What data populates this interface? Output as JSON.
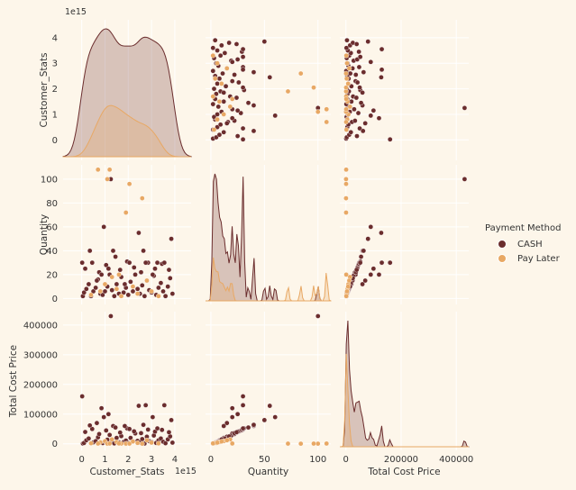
{
  "chart_data": {
    "type": "scatter",
    "kind": "pairplot",
    "variables": [
      "Customer_Stats",
      "Quantity",
      "Total Cost Price"
    ],
    "axis_labels": {
      "Customer_Stats": "Customer_Stats",
      "Quantity": "Quantity",
      "Total Cost Price": "Total Cost Price"
    },
    "offset_text": "1e15",
    "ticks": {
      "Customer_Stats": [
        0,
        1,
        2,
        3,
        4
      ],
      "Quantity": [
        0,
        20,
        40,
        60,
        80,
        100
      ],
      "Quantity_x": [
        0,
        50,
        100
      ],
      "Total Cost Price": [
        0,
        100000,
        200000,
        300000,
        400000
      ],
      "Total Cost Price_x": [
        0,
        200000,
        400000
      ]
    },
    "ranges": {
      "Customer_Stats": [
        -0.8,
        4.7
      ],
      "Quantity": [
        -5,
        112
      ],
      "Total Cost Price": [
        -22000,
        445000
      ]
    },
    "legend": {
      "title": "Payment Method",
      "placement": "right",
      "entries": [
        {
          "name": "CASH",
          "color": "#6b2d2d"
        },
        {
          "name": "Pay Later",
          "color": "#e8a864"
        }
      ]
    },
    "series": [
      {
        "name": "CASH",
        "color": "#6b2d2d",
        "points": [
          [
            0.05,
            2,
            1000
          ],
          [
            0.1,
            5,
            3000
          ],
          [
            0.2,
            8,
            12000
          ],
          [
            0.3,
            12,
            18000
          ],
          [
            0.4,
            2,
            2000
          ],
          [
            0.5,
            6,
            5000
          ],
          [
            0.6,
            9,
            9000
          ],
          [
            0.7,
            16,
            22000
          ],
          [
            0.8,
            4,
            4000
          ],
          [
            0.9,
            3,
            2500
          ],
          [
            1.0,
            6,
            7000
          ],
          [
            1.1,
            10,
            14000
          ],
          [
            1.2,
            20,
            30000
          ],
          [
            1.3,
            7,
            9000
          ],
          [
            1.4,
            2,
            1500
          ],
          [
            1.5,
            12,
            20000
          ],
          [
            1.6,
            4,
            5000
          ],
          [
            1.7,
            18,
            26000
          ],
          [
            1.8,
            5,
            6000
          ],
          [
            1.9,
            9,
            11000
          ],
          [
            2.0,
            3,
            3000
          ],
          [
            2.1,
            14,
            20000
          ],
          [
            2.2,
            6,
            8000
          ],
          [
            2.3,
            20,
            35000
          ],
          [
            2.4,
            8,
            10000
          ],
          [
            2.5,
            4,
            4500
          ],
          [
            2.6,
            11,
            16000
          ],
          [
            2.7,
            2,
            1200
          ],
          [
            2.8,
            15,
            24000
          ],
          [
            2.9,
            7,
            9000
          ],
          [
            3.0,
            5,
            6000
          ],
          [
            3.1,
            19,
            28000
          ],
          [
            3.2,
            3,
            3000
          ],
          [
            3.3,
            9,
            12000
          ],
          [
            3.4,
            13,
            18000
          ],
          [
            3.5,
            6,
            7000
          ],
          [
            3.6,
            2,
            2000
          ],
          [
            3.7,
            10,
            15000
          ],
          [
            3.8,
            17,
            25000
          ],
          [
            3.9,
            4,
            4000
          ],
          [
            0.15,
            25,
            40000
          ],
          [
            0.45,
            30,
            50000
          ],
          [
            0.75,
            22,
            33000
          ],
          [
            1.05,
            28,
            45000
          ],
          [
            1.35,
            40,
            60000
          ],
          [
            1.65,
            24,
            38000
          ],
          [
            1.95,
            31,
            52000
          ],
          [
            2.25,
            26,
            42000
          ],
          [
            2.55,
            22,
            36000
          ],
          [
            2.85,
            30,
            48000
          ],
          [
            3.15,
            25,
            41000
          ],
          [
            3.45,
            29,
            47000
          ],
          [
            3.75,
            24,
            39000
          ],
          [
            0.35,
            40,
            62000
          ],
          [
            1.45,
            35,
            55000
          ],
          [
            2.05,
            30,
            50000
          ],
          [
            2.65,
            40,
            64000
          ],
          [
            3.25,
            30,
            52000
          ],
          [
            3.85,
            50,
            80000
          ],
          [
            0.95,
            60,
            90000
          ],
          [
            1.25,
            100,
            430000
          ],
          [
            0.02,
            30,
            160000
          ],
          [
            2.75,
            30,
            130000
          ],
          [
            3.55,
            30,
            130000
          ],
          [
            0.85,
            20,
            120000
          ],
          [
            2.45,
            55,
            128000
          ],
          [
            1.15,
            25,
            100000
          ],
          [
            3.05,
            20,
            90000
          ],
          [
            0.65,
            15,
            70000
          ],
          [
            1.85,
            12,
            60000
          ]
        ]
      },
      {
        "name": "Pay Later",
        "color": "#e8a864",
        "points": [
          [
            0.4,
            3,
            2000
          ],
          [
            0.8,
            6,
            5000
          ],
          [
            1.0,
            12,
            9000
          ],
          [
            1.1,
            100,
            600
          ],
          [
            1.3,
            18,
            15000
          ],
          [
            1.5,
            8,
            6000
          ],
          [
            1.7,
            2,
            1000
          ],
          [
            1.9,
            72,
            700
          ],
          [
            2.05,
            96,
            800
          ],
          [
            2.2,
            10,
            8000
          ],
          [
            2.4,
            4,
            3000
          ],
          [
            2.6,
            84,
            500
          ],
          [
            2.8,
            15,
            12000
          ],
          [
            3.0,
            6,
            4000
          ],
          [
            3.3,
            2,
            1500
          ],
          [
            0.7,
            108,
            900
          ],
          [
            1.2,
            108,
            1000
          ],
          [
            1.6,
            20,
            1200
          ]
        ]
      }
    ]
  }
}
